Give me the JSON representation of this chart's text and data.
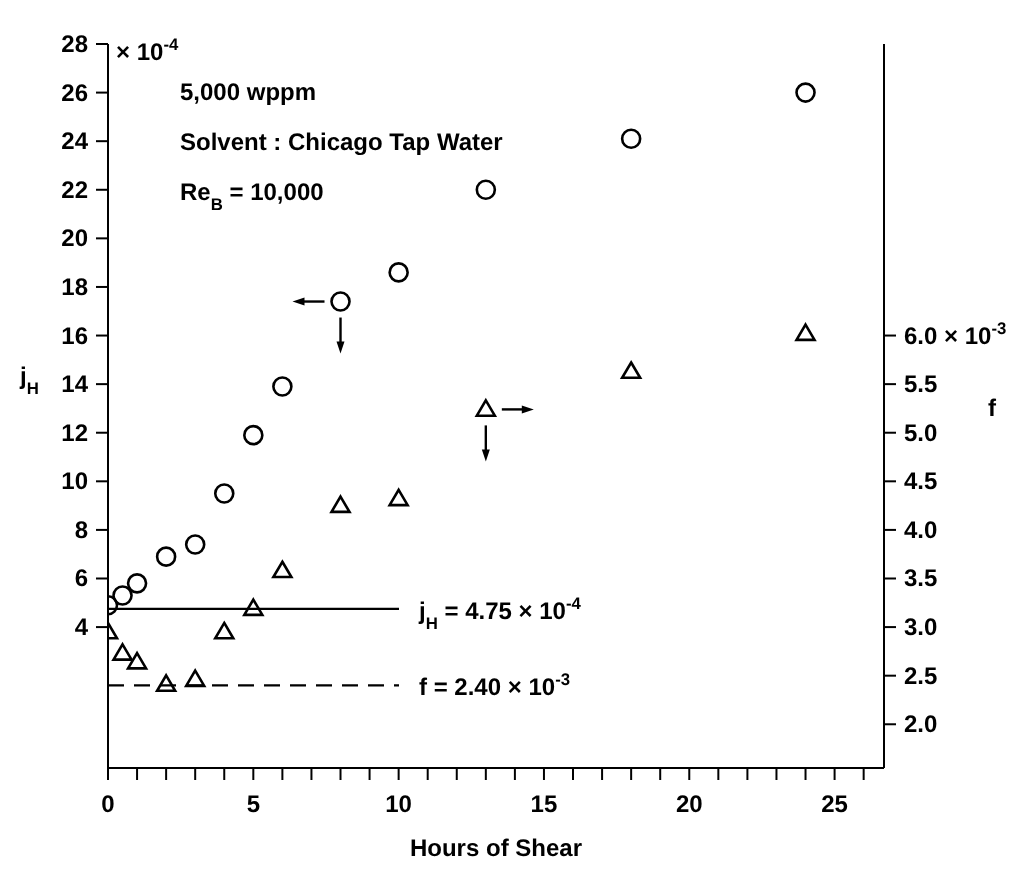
{
  "chart_data": {
    "type": "scatter",
    "annotations": [
      "5,000 wppm",
      "Solvent : Chicago Tap Water",
      "Re$_{B}$ = 10,000",
      "× 10$^{-4}$",
      "× 10$^{-3}$"
    ],
    "xlabel": "Hours of Shear",
    "ylabel": "j$_{H}$",
    "y2label": "f",
    "xlim": [
      0,
      26.7
    ],
    "xticks": [
      0,
      {
        "value": 1,
        "label": null
      },
      {
        "value": 2,
        "label": null
      },
      {
        "value": 3,
        "label": null
      },
      {
        "value": 4,
        "label": null
      },
      5,
      {
        "value": 6,
        "label": null
      },
      {
        "value": 7,
        "label": null
      },
      {
        "value": 8,
        "label": null
      },
      {
        "value": 9,
        "label": null
      },
      10,
      {
        "value": 11,
        "label": null
      },
      {
        "value": 12,
        "label": null
      },
      {
        "value": 13,
        "label": null
      },
      {
        "value": 14,
        "label": null
      },
      15,
      {
        "value": 16,
        "label": null
      },
      {
        "value": 17,
        "label": null
      },
      {
        "value": 18,
        "label": null
      },
      {
        "value": 19,
        "label": null
      },
      20,
      {
        "value": 21,
        "label": null
      },
      {
        "value": 22,
        "label": null
      },
      {
        "value": 23,
        "label": null
      },
      {
        "value": 24,
        "label": null
      },
      25,
      {
        "value": 26,
        "label": null
      }
    ],
    "ylim": [
      -1.8,
      28
    ],
    "yticks": [
      4,
      6,
      8,
      10,
      12,
      14,
      16,
      18,
      20,
      22,
      24,
      26,
      28
    ],
    "y2lim": [
      1.55,
      9.0
    ],
    "y2ticks": [
      {
        "value": 2,
        "label": "2.0"
      },
      {
        "value": 2.5,
        "label": "2.5"
      },
      {
        "value": 3,
        "label": "3.0"
      },
      {
        "value": 3.5,
        "label": "3.5"
      },
      {
        "value": 4,
        "label": "4.0"
      },
      {
        "value": 4.5,
        "label": "4.5"
      },
      {
        "value": 5,
        "label": "5.0"
      },
      {
        "value": 5.5,
        "label": "5.5"
      },
      {
        "value": 6,
        "label": "6.0"
      }
    ],
    "series": [
      {
        "color": "#000000",
        "marker": "circle",
        "x": [
          0,
          0.5,
          1,
          2,
          3,
          4,
          5,
          6,
          8,
          10,
          13,
          18,
          24
        ],
        "values": [
          4.9,
          5.3,
          5.8,
          6.9,
          7.4,
          9.5,
          11.9,
          13.9,
          17.4,
          18.6,
          22,
          24.1,
          26
        ]
      },
      {
        "color": "#000000",
        "marker": "triangle",
        "axis": "y2",
        "x": [
          0,
          0.5,
          1,
          2,
          3,
          4,
          5,
          6,
          8,
          10,
          13,
          18,
          24
        ],
        "values": [
          2.95,
          2.73,
          2.64,
          2.41,
          2.46,
          2.95,
          3.19,
          3.58,
          4.25,
          4.32,
          5.24,
          5.63,
          6.02
        ]
      }
    ],
    "ref_lines": [
      {
        "axis": "y",
        "value": 4.75,
        "label": "j$_{H}$ = 4.75 × 10$^{-4}$",
        "line_style": "solid"
      },
      {
        "axis": "y2",
        "value": 2.4,
        "label": "f = 2.40 × 10$^{-3}$",
        "line_style": "dashed"
      }
    ],
    "grid": false,
    "legend": false
  }
}
